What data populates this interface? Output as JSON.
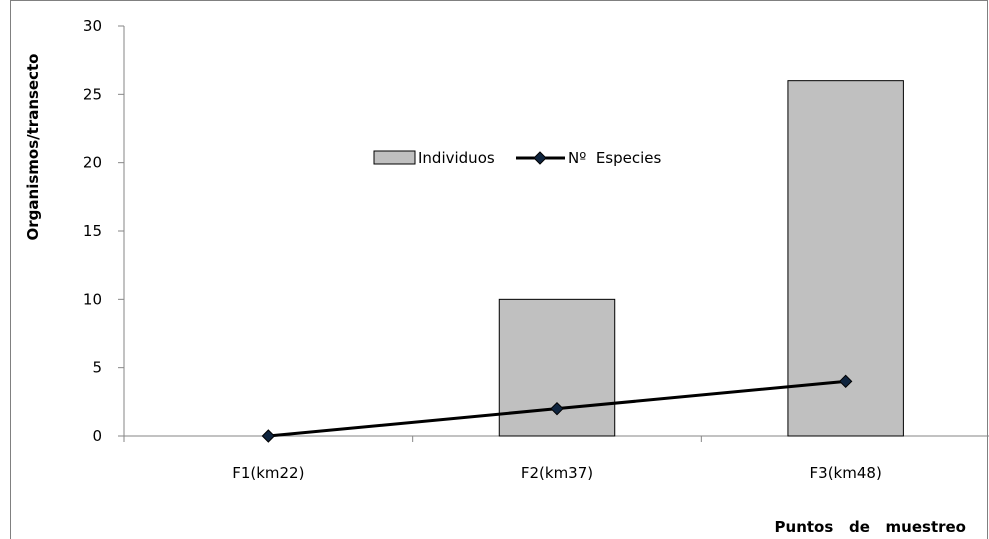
{
  "chart_data": {
    "type": "bar",
    "categories": [
      "F1(km22)",
      "F2(km37)",
      "F3(km48)"
    ],
    "series": [
      {
        "name": "Individuos",
        "type": "bar",
        "values": [
          0,
          10,
          26
        ],
        "color": "#c0c0c0"
      },
      {
        "name": "Nº  Especies",
        "type": "line",
        "values": [
          0,
          2,
          4
        ],
        "color": "#000000"
      }
    ],
    "title": "",
    "xlabel": "Puntos   de   muestreo",
    "ylabel": "Organismos/transecto",
    "ylim": [
      0,
      30
    ],
    "yticks": [
      0,
      5,
      10,
      15,
      20,
      25,
      30
    ],
    "grid": false,
    "legend_position": "center"
  }
}
